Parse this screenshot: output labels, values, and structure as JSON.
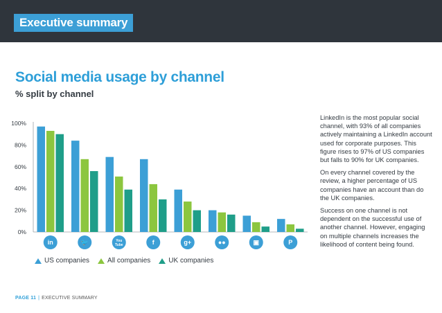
{
  "header": {
    "section_tag": "Executive summary"
  },
  "page_title": "Social media usage by channel",
  "page_subtitle": "% split by channel",
  "colors": {
    "us": "#3c9fd6",
    "all": "#8cc63f",
    "uk": "#1f9e89",
    "icon_bg": "#3c9fd6",
    "dark": "#2f353c",
    "text": "#333a41"
  },
  "chart_data": {
    "type": "bar",
    "categories": [
      "LinkedIn",
      "Twitter",
      "YouTube",
      "Facebook",
      "Google+",
      "Flickr",
      "SlideShare",
      "Pinterest"
    ],
    "category_icons": [
      "linkedin-icon",
      "twitter-icon",
      "youtube-icon",
      "facebook-icon",
      "googleplus-icon",
      "flickr-icon",
      "slideshare-icon",
      "pinterest-icon"
    ],
    "series": [
      {
        "name": "US companies",
        "values": [
          97,
          84,
          69,
          67,
          39,
          20,
          15,
          12
        ]
      },
      {
        "name": "All companies",
        "values": [
          93,
          67,
          51,
          44,
          28,
          18,
          9,
          7
        ]
      },
      {
        "name": "UK companies",
        "values": [
          90,
          56,
          39,
          30,
          20,
          16,
          5,
          3
        ]
      }
    ],
    "yticks": [
      "0%",
      "20%",
      "40%",
      "60%",
      "80%",
      "100%"
    ],
    "ylim": [
      0,
      100
    ],
    "grid": false,
    "legend_position": "bottom"
  },
  "icon_glyphs": {
    "linkedin-icon": "in",
    "twitter-icon": "🐦",
    "youtube-icon": "You\nTube",
    "facebook-icon": "f",
    "googleplus-icon": "g+",
    "flickr-icon": "●●",
    "slideshare-icon": "▣",
    "pinterest-icon": "P"
  },
  "legend": {
    "us": "US companies",
    "all": "All companies",
    "uk": "UK companies"
  },
  "narrative": {
    "p1": "LinkedIn is the most popular social channel, with 93% of all companies actively maintaining a LinkedIn account used for corporate purposes. This figure rises to 97% of US companies but falls to 90% for UK companies.",
    "p2": "On every channel covered by the review, a higher percentage of US companies have an account than do the UK companies.",
    "p3": "Success on one channel is not dependent on the successful use of another channel. However, engaging on multiple channels increases the likelihood of content being found."
  },
  "footer": {
    "page": "PAGE 11",
    "section": "EXECUTIVE SUMMARY"
  }
}
